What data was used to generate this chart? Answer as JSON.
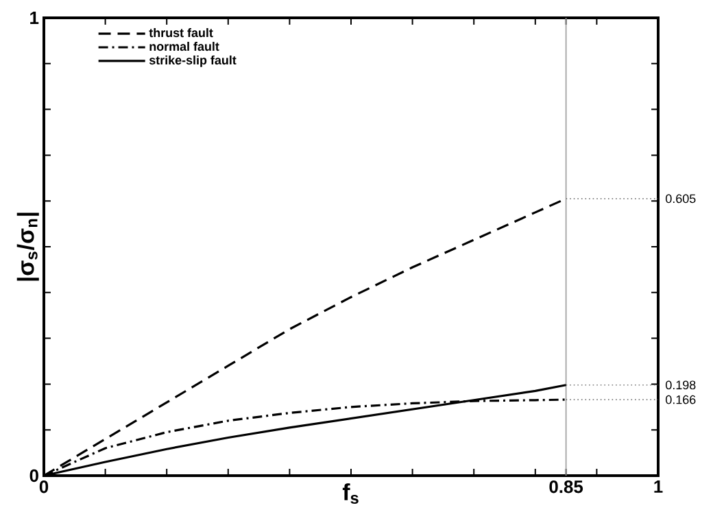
{
  "chart_data": {
    "type": "line",
    "xlabel": "f$_{s}$",
    "ylabel": "|σ$_{s}$/σ$_{n}$|",
    "xlim": [
      0,
      1
    ],
    "ylim": [
      0,
      1
    ],
    "xticks": [
      0,
      {
        "value": 0.1,
        "label": null
      },
      {
        "value": 0.2,
        "label": null
      },
      {
        "value": 0.3,
        "label": null
      },
      {
        "value": 0.4,
        "label": null
      },
      {
        "value": 0.5,
        "label": null
      },
      {
        "value": 0.6,
        "label": null
      },
      {
        "value": 0.7,
        "label": null
      },
      {
        "value": 0.8,
        "label": null
      },
      0.85,
      {
        "value": 0.9,
        "label": null
      },
      1
    ],
    "yticks": [
      0,
      {
        "value": 0.1,
        "label": null
      },
      {
        "value": 0.2,
        "label": null
      },
      {
        "value": 0.3,
        "label": null
      },
      {
        "value": 0.4,
        "label": null
      },
      {
        "value": 0.5,
        "label": null
      },
      {
        "value": 0.6,
        "label": null
      },
      {
        "value": 0.7,
        "label": null
      },
      {
        "value": 0.8,
        "label": null
      },
      {
        "value": 0.9,
        "label": null
      },
      1
    ],
    "x": [
      0,
      0.1,
      0.2,
      0.3,
      0.4,
      0.5,
      0.6,
      0.7,
      0.8,
      0.85
    ],
    "series": [
      {
        "name": "thrust fault",
        "color": "#000000",
        "line_style": "dashed",
        "values": [
          0,
          0.08,
          0.16,
          0.24,
          0.32,
          0.39,
          0.455,
          0.515,
          0.575,
          0.605
        ]
      },
      {
        "name": "normal fault",
        "color": "#000000",
        "line_style": "dashdot",
        "values": [
          0,
          0.06,
          0.095,
          0.12,
          0.137,
          0.15,
          0.158,
          0.163,
          0.165,
          0.166
        ]
      },
      {
        "name": "strike-slip fault",
        "color": "#000000",
        "line_style": "solid",
        "values": [
          0,
          0.03,
          0.058,
          0.083,
          0.105,
          0.125,
          0.145,
          0.165,
          0.185,
          0.198
        ]
      }
    ],
    "ref_lines": [
      {
        "axis": "x",
        "value": 0.85,
        "color": "#999999",
        "line_style": "solid"
      },
      {
        "axis": "y",
        "value": 0.605,
        "label": "0.605",
        "color": "#777777",
        "line_style": "dotted"
      },
      {
        "axis": "y",
        "value": 0.198,
        "label": "0.198",
        "color": "#777777",
        "line_style": "dotted"
      },
      {
        "axis": "y",
        "value": 0.166,
        "label": "0.166",
        "color": "#777777",
        "line_style": "dotted"
      }
    ],
    "legend": "top left",
    "grid": false,
    "marker": "none"
  }
}
